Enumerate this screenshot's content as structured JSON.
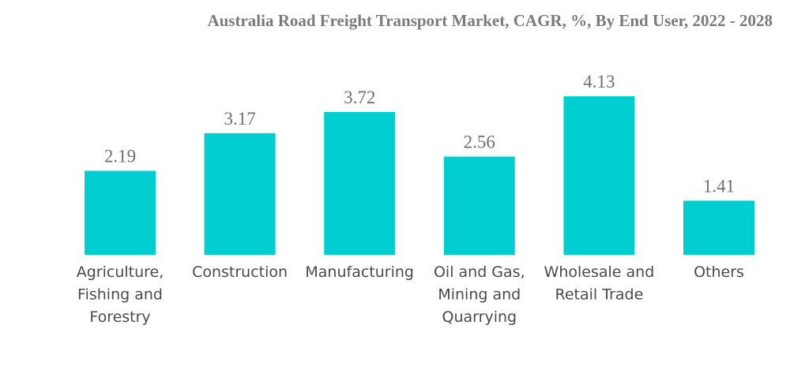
{
  "chart_data": {
    "type": "bar",
    "title": "Australia Road Freight Transport Market, CAGR, %, By End User, 2022 - 2028",
    "xlabel": "",
    "ylabel": "",
    "categories": [
      [
        "Agriculture,",
        "Fishing and",
        "Forestry"
      ],
      [
        "Construction"
      ],
      [
        "Manufacturing"
      ],
      [
        "Oil and Gas,",
        "Mining and",
        "Quarrying"
      ],
      [
        "Wholesale and",
        "Retail Trade"
      ],
      [
        "Others"
      ]
    ],
    "values": [
      2.19,
      3.17,
      3.72,
      2.56,
      4.13,
      1.41
    ],
    "value_labels": [
      "2.19",
      "3.17",
      "3.72",
      "2.56",
      "4.13",
      "1.41"
    ],
    "ylim": [
      0,
      4.5
    ],
    "grid": false,
    "legend": "none",
    "bar_color": "#00CED1"
  }
}
